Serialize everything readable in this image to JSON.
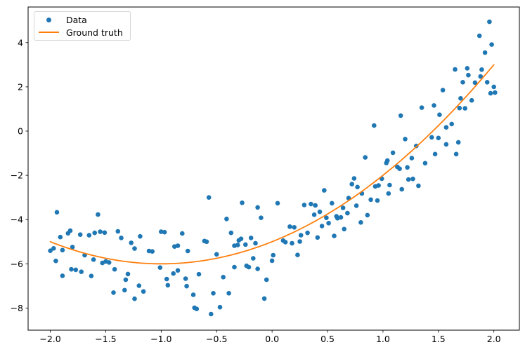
{
  "chart_data": {
    "type": "scatter",
    "title": "",
    "xlabel": "",
    "ylabel": "",
    "grid": false,
    "legend_position": "upper left",
    "axis_color": "#000000",
    "text_color": "#000000",
    "xlim": [
      -2.2,
      2.23
    ],
    "ylim": [
      -9.0,
      5.61
    ],
    "x_ticks": {
      "values": [
        -2.0,
        -1.5,
        -1.0,
        -0.5,
        0.0,
        0.5,
        1.0,
        1.5,
        2.0
      ],
      "labels": [
        "−2.0",
        "−1.5",
        "−1.0",
        "−0.5",
        "0.0",
        "0.5",
        "1.0",
        "1.5",
        "2.0"
      ]
    },
    "y_ticks": {
      "values": [
        -8,
        -6,
        -4,
        -2,
        0,
        2,
        4
      ],
      "labels": [
        "−8",
        "−6",
        "−4",
        "−2",
        "0",
        "2",
        "4"
      ]
    },
    "series": [
      {
        "name": "Data",
        "type": "scatter",
        "color": "#1f77b4",
        "marker": "dot",
        "marker_size": 3.3,
        "points": [
          [
            -2.0,
            -5.41
          ],
          [
            -1.97,
            -5.3
          ],
          [
            -1.95,
            -5.87
          ],
          [
            -1.94,
            -3.67
          ],
          [
            -1.91,
            -4.79
          ],
          [
            -1.89,
            -5.38
          ],
          [
            -1.89,
            -6.54
          ],
          [
            -1.84,
            -4.62
          ],
          [
            -1.82,
            -4.5
          ],
          [
            -1.81,
            -6.25
          ],
          [
            -1.8,
            -5.24
          ],
          [
            -1.77,
            -6.27
          ],
          [
            -1.73,
            -4.68
          ],
          [
            -1.72,
            -6.36
          ],
          [
            -1.69,
            -5.61
          ],
          [
            -1.65,
            -4.71
          ],
          [
            -1.63,
            -6.55
          ],
          [
            -1.61,
            -5.81
          ],
          [
            -1.6,
            -4.6
          ],
          [
            -1.57,
            -3.77
          ],
          [
            -1.55,
            -4.55
          ],
          [
            -1.53,
            -5.96
          ],
          [
            -1.51,
            -4.59
          ],
          [
            -1.5,
            -5.89
          ],
          [
            -1.47,
            -5.94
          ],
          [
            -1.43,
            -7.3
          ],
          [
            -1.42,
            -6.25
          ],
          [
            -1.39,
            -4.53
          ],
          [
            -1.36,
            -4.83
          ],
          [
            -1.33,
            -7.19
          ],
          [
            -1.32,
            -6.72
          ],
          [
            -1.3,
            -6.46
          ],
          [
            -1.27,
            -5.05
          ],
          [
            -1.24,
            -5.31
          ],
          [
            -1.24,
            -7.58
          ],
          [
            -1.2,
            -6.99
          ],
          [
            -1.19,
            -4.76
          ],
          [
            -1.16,
            -7.25
          ],
          [
            -1.11,
            -5.42
          ],
          [
            -1.08,
            -5.44
          ],
          [
            -1.01,
            -6.17
          ],
          [
            -1.0,
            -4.55
          ],
          [
            -0.97,
            -4.57
          ],
          [
            -0.95,
            -6.69
          ],
          [
            -0.94,
            -6.97
          ],
          [
            -0.89,
            -6.44
          ],
          [
            -0.88,
            -5.22
          ],
          [
            -0.85,
            -5.18
          ],
          [
            -0.85,
            -6.3
          ],
          [
            -0.81,
            -4.63
          ],
          [
            -0.78,
            -6.67
          ],
          [
            -0.77,
            -7.01
          ],
          [
            -0.76,
            -5.42
          ],
          [
            -0.71,
            -7.4
          ],
          [
            -0.7,
            -7.99
          ],
          [
            -0.68,
            -8.04
          ],
          [
            -0.66,
            -6.47
          ],
          [
            -0.61,
            -4.97
          ],
          [
            -0.59,
            -5.0
          ],
          [
            -0.57,
            -3.0
          ],
          [
            -0.55,
            -8.27
          ],
          [
            -0.53,
            -7.33
          ],
          [
            -0.5,
            -5.57
          ],
          [
            -0.47,
            -7.96
          ],
          [
            -0.44,
            -6.6
          ],
          [
            -0.41,
            -3.97
          ],
          [
            -0.39,
            -7.33
          ],
          [
            -0.37,
            -4.6
          ],
          [
            -0.34,
            -5.18
          ],
          [
            -0.34,
            -6.15
          ],
          [
            -0.31,
            -5.15
          ],
          [
            -0.3,
            -4.94
          ],
          [
            -0.28,
            -4.87
          ],
          [
            -0.27,
            -3.24
          ],
          [
            -0.24,
            -5.13
          ],
          [
            -0.23,
            -6.09
          ],
          [
            -0.21,
            -6.15
          ],
          [
            -0.19,
            -4.83
          ],
          [
            -0.17,
            -5.75
          ],
          [
            -0.15,
            -5.07
          ],
          [
            -0.13,
            -3.45
          ],
          [
            -0.13,
            -6.23
          ],
          [
            -0.1,
            -3.92
          ],
          [
            -0.07,
            -7.57
          ],
          [
            -0.05,
            -6.72
          ],
          [
            0.0,
            -5.86
          ],
          [
            0.01,
            -5.61
          ],
          [
            0.05,
            -3.26
          ],
          [
            0.1,
            -4.95
          ],
          [
            0.12,
            -5.02
          ],
          [
            0.16,
            -4.32
          ],
          [
            0.18,
            -5.07
          ],
          [
            0.2,
            -4.35
          ],
          [
            0.23,
            -5.6
          ],
          [
            0.25,
            -4.99
          ],
          [
            0.26,
            -4.71
          ],
          [
            0.29,
            -3.34
          ],
          [
            0.32,
            -4.6
          ],
          [
            0.35,
            -3.3
          ],
          [
            0.38,
            -3.78
          ],
          [
            0.39,
            -3.36
          ],
          [
            0.41,
            -4.81
          ],
          [
            0.43,
            -3.65
          ],
          [
            0.45,
            -4.29
          ],
          [
            0.47,
            -2.68
          ],
          [
            0.49,
            -3.92
          ],
          [
            0.51,
            -4.16
          ],
          [
            0.54,
            -3.26
          ],
          [
            0.56,
            -4.74
          ],
          [
            0.58,
            -3.85
          ],
          [
            0.59,
            -3.94
          ],
          [
            0.62,
            -3.9
          ],
          [
            0.64,
            -3.47
          ],
          [
            0.65,
            -4.43
          ],
          [
            0.68,
            -3.71
          ],
          [
            0.69,
            -3.03
          ],
          [
            0.72,
            -2.4
          ],
          [
            0.74,
            -2.14
          ],
          [
            0.76,
            -3.37
          ],
          [
            0.77,
            -2.53
          ],
          [
            0.8,
            -4.13
          ],
          [
            0.81,
            -2.82
          ],
          [
            0.84,
            -1.19
          ],
          [
            0.86,
            -3.8
          ],
          [
            0.89,
            -3.1
          ],
          [
            0.92,
            0.25
          ],
          [
            0.93,
            -2.5
          ],
          [
            0.95,
            -3.14
          ],
          [
            0.96,
            -2.46
          ],
          [
            0.99,
            -2.15
          ],
          [
            1.03,
            -1.44
          ],
          [
            1.04,
            -1.33
          ],
          [
            1.05,
            -2.82
          ],
          [
            1.06,
            -2.44
          ],
          [
            1.09,
            -0.98
          ],
          [
            1.13,
            -1.62
          ],
          [
            1.15,
            -1.7
          ],
          [
            1.16,
            0.7
          ],
          [
            1.17,
            -2.63
          ],
          [
            1.2,
            -0.36
          ],
          [
            1.22,
            -1.64
          ],
          [
            1.23,
            -2.19
          ],
          [
            1.26,
            -1.22
          ],
          [
            1.27,
            -2.16
          ],
          [
            1.3,
            -0.67
          ],
          [
            1.32,
            -2.47
          ],
          [
            1.35,
            1.06
          ],
          [
            1.38,
            -1.45
          ],
          [
            1.44,
            -0.28
          ],
          [
            1.46,
            1.16
          ],
          [
            1.47,
            -1.04
          ],
          [
            1.5,
            -0.31
          ],
          [
            1.51,
            0.74
          ],
          [
            1.54,
            1.85
          ],
          [
            1.57,
            0.17
          ],
          [
            1.57,
            -0.6
          ],
          [
            1.62,
            0.32
          ],
          [
            1.65,
            2.79
          ],
          [
            1.66,
            -1.04
          ],
          [
            1.68,
            -0.51
          ],
          [
            1.69,
            1.04
          ],
          [
            1.7,
            1.48
          ],
          [
            1.72,
            2.21
          ],
          [
            1.74,
            1.03
          ],
          [
            1.76,
            2.84
          ],
          [
            1.77,
            2.53
          ],
          [
            1.8,
            1.39
          ],
          [
            1.83,
            2.19
          ],
          [
            1.87,
            4.31
          ],
          [
            1.88,
            2.47
          ],
          [
            1.89,
            2.78
          ],
          [
            1.92,
            3.55
          ],
          [
            1.94,
            2.21
          ],
          [
            1.96,
            4.94
          ],
          [
            1.97,
            1.71
          ],
          [
            1.98,
            3.91
          ],
          [
            2.0,
            2.0
          ],
          [
            2.01,
            1.74
          ]
        ]
      },
      {
        "name": "Ground truth",
        "type": "line",
        "color": "#ff7f0e",
        "line_width": 1.8,
        "function": "y = x^2 + 2x - 5",
        "poly_coeffs": [
          1,
          2,
          -5
        ],
        "x_range": [
          -2.0,
          2.005
        ],
        "key_values": {
          "x=-2": -5,
          "x=-1": -6,
          "x=0": -5,
          "x=1": -2,
          "x=2": 3
        }
      }
    ]
  }
}
